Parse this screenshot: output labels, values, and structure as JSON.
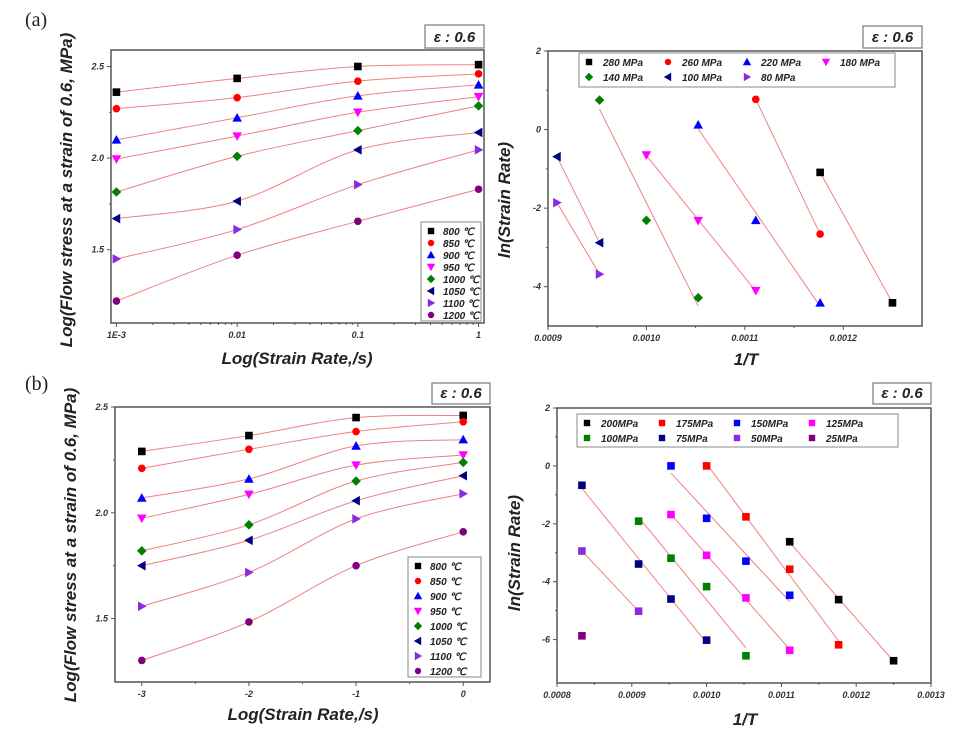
{
  "chart_data": [
    {
      "panel_label": "(a)",
      "annotation": "ε : 0.6",
      "type": "scatter",
      "fit": "spline",
      "xlabel": "Log(Strain Rate,/s)",
      "ylabel": "Log(Flow stress at a strain of 0.6, MPa)",
      "xscale": "log",
      "xlim": [
        0.001,
        1
      ],
      "ylim": [
        1.1,
        2.59
      ],
      "xticks": [
        {
          "v": 0.001,
          "label": "1E-3"
        },
        {
          "v": 0.01,
          "label": "0.01"
        },
        {
          "v": 0.1,
          "label": "0.1"
        },
        {
          "v": 1,
          "label": "1"
        }
      ],
      "yticks": [
        {
          "v": 1.5,
          "label": "1.5"
        },
        {
          "v": 2.0,
          "label": "2.0"
        },
        {
          "v": 2.5,
          "label": "2.5"
        }
      ],
      "legend_position": "bottom-right",
      "x": [
        0.001,
        0.01,
        0.1,
        1
      ],
      "series": [
        {
          "name": "800 ℃",
          "marker": "square",
          "color": "#000000",
          "y": [
            2.36,
            2.435,
            2.5,
            2.51
          ]
        },
        {
          "name": "850 ℃",
          "marker": "circle",
          "color": "#ff0000",
          "y": [
            2.27,
            2.33,
            2.42,
            2.46
          ]
        },
        {
          "name": "900 ℃",
          "marker": "triangle-up",
          "color": "#0000ff",
          "y": [
            2.1,
            2.22,
            2.34,
            2.4
          ]
        },
        {
          "name": "950 ℃",
          "marker": "triangle-down",
          "color": "#ff00ff",
          "y": [
            1.995,
            2.12,
            2.25,
            2.335
          ]
        },
        {
          "name": "1000 ℃",
          "marker": "diamond",
          "color": "#008000",
          "y": [
            1.815,
            2.01,
            2.15,
            2.285
          ]
        },
        {
          "name": "1050 ℃",
          "marker": "triangle-left",
          "color": "#000080",
          "y": [
            1.67,
            1.765,
            2.045,
            2.14
          ]
        },
        {
          "name": "1100 ℃",
          "marker": "triangle-right",
          "color": "#8a2be2",
          "y": [
            1.45,
            1.61,
            1.855,
            2.045
          ]
        },
        {
          "name": "1200 ℃",
          "marker": "circle",
          "color": "#800080",
          "y": [
            1.22,
            1.47,
            1.655,
            1.83
          ]
        }
      ]
    },
    {
      "annotation": "ε : 0.6",
      "type": "scatter",
      "fit": "linear",
      "xlabel": "1/T",
      "ylabel": "ln(Strain Rate)",
      "xscale": "linear",
      "xlim": [
        0.0009,
        0.00128
      ],
      "ylim": [
        -5,
        2
      ],
      "xticks": [
        {
          "v": 0.0009,
          "label": "0.0009"
        },
        {
          "v": 0.001,
          "label": "0.0010"
        },
        {
          "v": 0.0011,
          "label": "0.0011"
        },
        {
          "v": 0.0012,
          "label": "0.0012"
        }
      ],
      "yticks": [
        {
          "v": 2,
          "label": "2"
        },
        {
          "v": 0,
          "label": "0"
        },
        {
          "v": -2,
          "label": "-2"
        },
        {
          "v": -4,
          "label": "-4"
        }
      ],
      "legend_position": "top",
      "series": [
        {
          "name": "280 MPa",
          "marker": "square",
          "color": "#000000",
          "x": [
            0.0011765,
            0.00125
          ],
          "y": [
            -1.09,
            -4.41
          ]
        },
        {
          "name": "260 MPa",
          "marker": "circle",
          "color": "#ff0000",
          "x": [
            0.0011111,
            0.0011765
          ],
          "y": [
            0.77,
            -2.66
          ]
        },
        {
          "name": "220 MPa",
          "marker": "triangle-up",
          "color": "#0000ff",
          "x": [
            0.0010526,
            0.0011111,
            0.0011765
          ],
          "y": [
            0.12,
            -2.31,
            -4.41
          ]
        },
        {
          "name": "180 MPa",
          "marker": "triangle-down",
          "color": "#ff00ff",
          "x": [
            0.001,
            0.0010526,
            0.0011111
          ],
          "y": [
            -0.65,
            -2.32,
            -4.1
          ]
        },
        {
          "name": "140 MPa",
          "marker": "diamond",
          "color": "#008000",
          "x": [
            0.00095238,
            0.001,
            0.0010526
          ],
          "y": [
            0.75,
            -2.31,
            -4.28
          ]
        },
        {
          "name": "100 MPa",
          "marker": "triangle-left",
          "color": "#000080",
          "x": [
            0.00090909,
            0.00095238
          ],
          "y": [
            -0.69,
            -2.88
          ]
        },
        {
          "name": "80 MPa",
          "marker": "triangle-right",
          "color": "#8a2be2",
          "x": [
            0.00090909,
            0.00095238
          ],
          "y": [
            -1.86,
            -3.68
          ]
        }
      ]
    },
    {
      "panel_label": "(b)",
      "annotation": "ε : 0.6",
      "type": "scatter",
      "fit": "spline",
      "xlabel": "Log(Strain Rate,/s)",
      "ylabel": "Log(Flow stress at a strain of 0.6, MPa)",
      "xscale": "linear",
      "xlim": [
        -3.25,
        0.25
      ],
      "ylim": [
        1.2,
        2.5
      ],
      "xticks": [
        {
          "v": -3,
          "label": "-3"
        },
        {
          "v": -2,
          "label": "-2"
        },
        {
          "v": -1,
          "label": "-1"
        },
        {
          "v": 0,
          "label": "0"
        }
      ],
      "yticks": [
        {
          "v": 1.5,
          "label": "1.5"
        },
        {
          "v": 2.0,
          "label": "2.0"
        },
        {
          "v": 2.5,
          "label": "2.5"
        }
      ],
      "legend_position": "bottom-right",
      "x": [
        -3,
        -2,
        -1,
        0
      ],
      "series": [
        {
          "name": "800 ℃",
          "marker": "square",
          "color": "#000000",
          "y": [
            2.29,
            2.365,
            2.45,
            2.46
          ]
        },
        {
          "name": "850 ℃",
          "marker": "circle",
          "color": "#ff0000",
          "y": [
            2.21,
            2.3,
            2.384,
            2.43
          ]
        },
        {
          "name": "900 ℃",
          "marker": "triangle-up",
          "color": "#0000ff",
          "y": [
            2.07,
            2.16,
            2.316,
            2.346
          ]
        },
        {
          "name": "950 ℃",
          "marker": "triangle-down",
          "color": "#ff00ff",
          "y": [
            1.974,
            2.087,
            2.225,
            2.273
          ]
        },
        {
          "name": "1000 ℃",
          "marker": "diamond",
          "color": "#008000",
          "y": [
            1.82,
            1.943,
            2.15,
            2.238
          ]
        },
        {
          "name": "1050 ℃",
          "marker": "triangle-left",
          "color": "#000080",
          "y": [
            1.75,
            1.87,
            2.057,
            2.175
          ]
        },
        {
          "name": "1100 ℃",
          "marker": "triangle-right",
          "color": "#8a2be2",
          "y": [
            1.558,
            1.718,
            1.971,
            2.09
          ]
        },
        {
          "name": "1200 ℃",
          "marker": "circle",
          "color": "#800080",
          "y": [
            1.302,
            1.484,
            1.75,
            1.91
          ]
        }
      ]
    },
    {
      "annotation": "ε : 0.6",
      "type": "scatter",
      "fit": "linear",
      "xlabel": "1/T",
      "ylabel": "ln(Strain Rate)",
      "xscale": "linear",
      "xlim": [
        0.0008,
        0.0013
      ],
      "ylim": [
        -7.5,
        2
      ],
      "xticks": [
        {
          "v": 0.0008,
          "label": "0.0008"
        },
        {
          "v": 0.0009,
          "label": "0.0009"
        },
        {
          "v": 0.001,
          "label": "0.0010"
        },
        {
          "v": 0.0011,
          "label": "0.0011"
        },
        {
          "v": 0.0012,
          "label": "0.0012"
        },
        {
          "v": 0.0013,
          "label": "0.0013"
        }
      ],
      "yticks": [
        {
          "v": 2,
          "label": "2"
        },
        {
          "v": 0,
          "label": "0"
        },
        {
          "v": -2,
          "label": "-2"
        },
        {
          "v": -4,
          "label": "-4"
        },
        {
          "v": -6,
          "label": "-6"
        }
      ],
      "legend_position": "top",
      "series": [
        {
          "name": "200MPa",
          "marker": "square",
          "color": "#000000",
          "x": [
            0.0011111,
            0.0011765,
            0.00125
          ],
          "y": [
            -2.62,
            -4.62,
            -6.73
          ]
        },
        {
          "name": "175MPa",
          "marker": "square",
          "color": "#ff0000",
          "x": [
            0.001,
            0.0010526,
            0.0011111,
            0.0011765
          ],
          "y": [
            0.0,
            -1.76,
            -3.57,
            -6.18
          ]
        },
        {
          "name": "150MPa",
          "marker": "square",
          "color": "#0000ff",
          "x": [
            0.00095238,
            0.001,
            0.0010526,
            0.0011111
          ],
          "y": [
            0.0,
            -1.81,
            -3.29,
            -4.47
          ]
        },
        {
          "name": "125MPa",
          "marker": "square",
          "color": "#ff00ff",
          "x": [
            0.00095238,
            0.001,
            0.0010526,
            0.0011111
          ],
          "y": [
            -1.68,
            -3.09,
            -4.56,
            -6.37
          ]
        },
        {
          "name": "100MPa",
          "marker": "square",
          "color": "#008000",
          "x": [
            0.00090909,
            0.00095238,
            0.001,
            0.0010526
          ],
          "y": [
            -1.91,
            -3.19,
            -4.17,
            -6.56
          ]
        },
        {
          "name": "75MPa",
          "marker": "square",
          "color": "#000080",
          "x": [
            0.00083333,
            0.00090909,
            0.00095238,
            0.001
          ],
          "y": [
            -0.67,
            -3.39,
            -4.6,
            -6.02
          ]
        },
        {
          "name": "50MPa",
          "marker": "square",
          "color": "#8a2be2",
          "x": [
            0.00083333,
            0.00090909
          ],
          "y": [
            -2.94,
            -5.02
          ]
        },
        {
          "name": "25MPa",
          "marker": "square",
          "color": "#800080",
          "x": [
            0.00083333
          ],
          "y": [
            -5.87
          ]
        }
      ]
    }
  ]
}
